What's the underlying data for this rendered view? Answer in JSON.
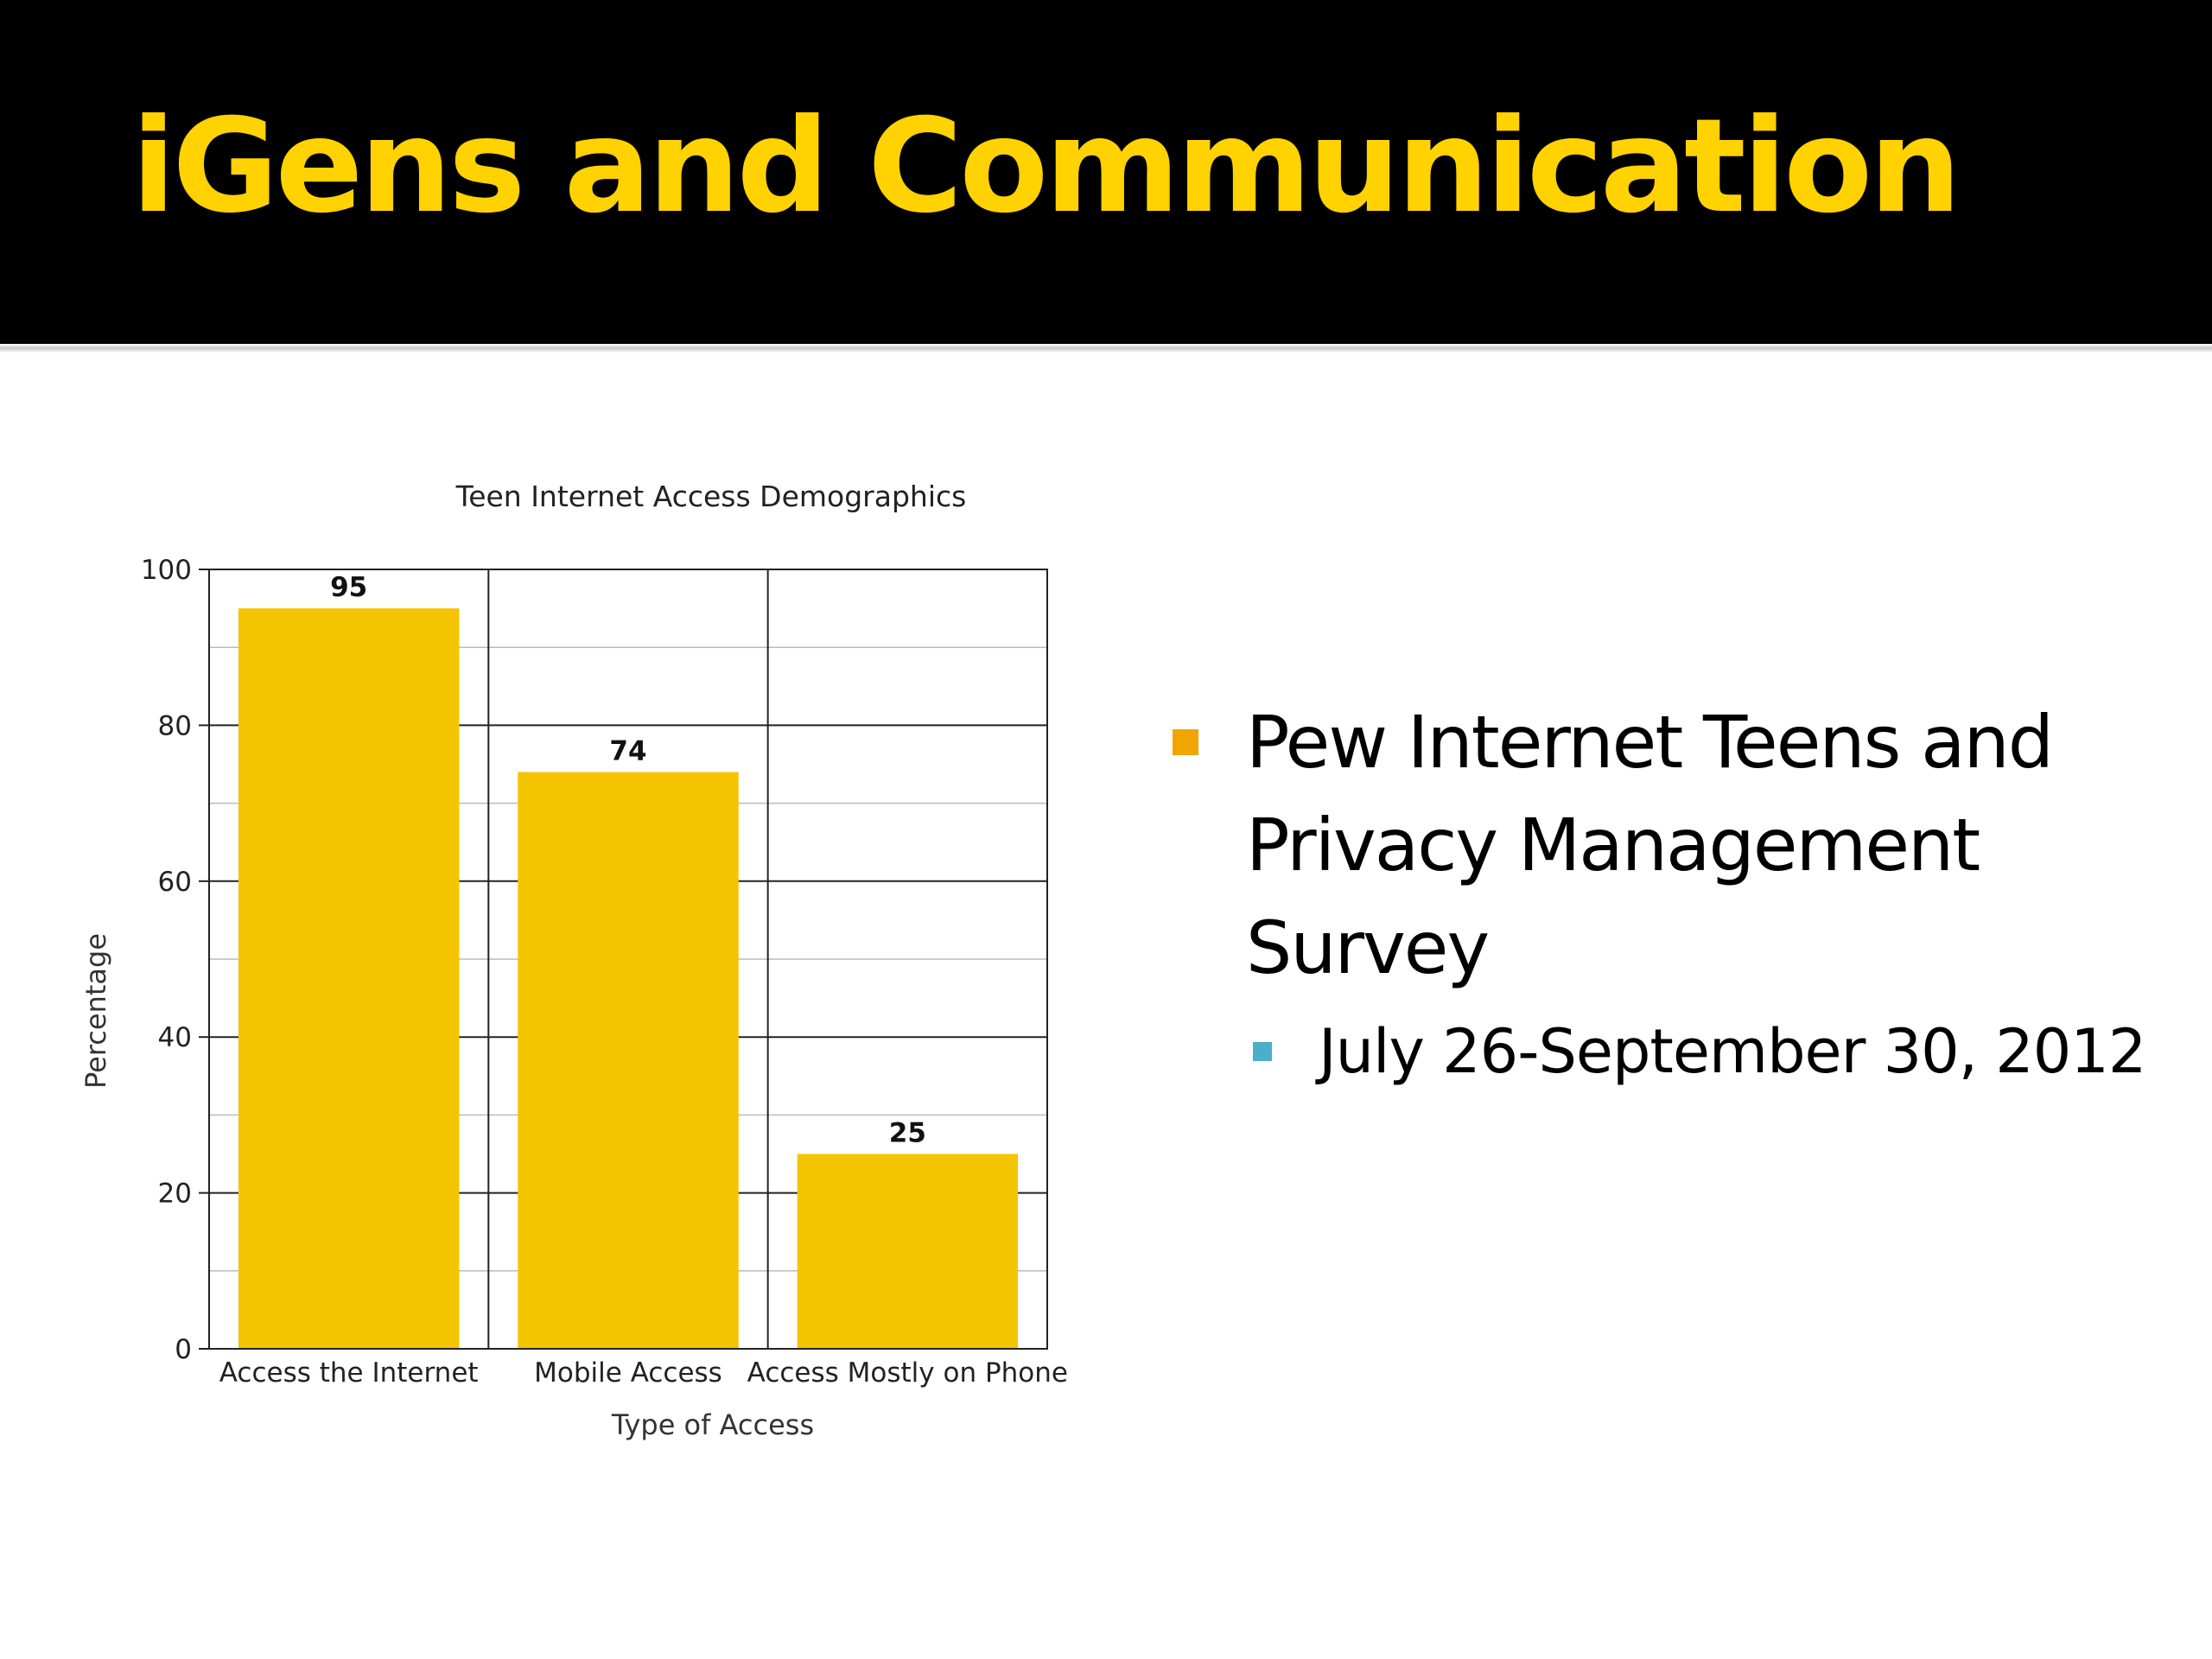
{
  "slide": {
    "title": "iGens and Communication",
    "title_color": "#FFD200",
    "header_bg": "#000000"
  },
  "bullets": {
    "main": {
      "text": "Pew Internet Teens and Privacy Management Survey",
      "marker_color": "#F0A500"
    },
    "sub": {
      "text": "July 26-September 30, 2012",
      "marker_color": "#4AAFC8"
    }
  },
  "chart_data": {
    "type": "bar",
    "title": "Teen Internet Access Demographics",
    "xlabel": "Type of Access",
    "ylabel": "Percentage",
    "categories": [
      "Access the Internet",
      "Mobile Access",
      "Access Mostly on Phone"
    ],
    "values": [
      95,
      74,
      25
    ],
    "data_labels": [
      "95",
      "74",
      "25"
    ],
    "ylim": [
      0,
      100
    ],
    "yticks": [
      0,
      20,
      40,
      60,
      80,
      100
    ],
    "grid": true,
    "bar_color": "#F5C400"
  }
}
